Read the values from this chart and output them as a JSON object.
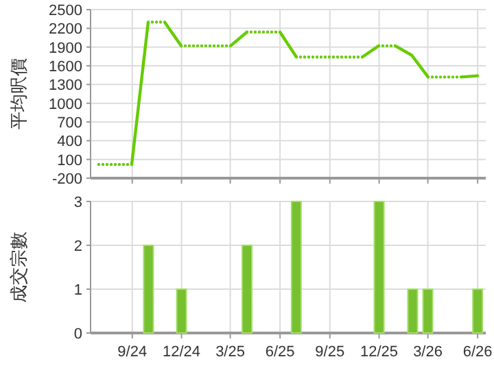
{
  "chart_data": [
    {
      "type": "line",
      "ylabel": "平均呎價",
      "categories": [
        null,
        null,
        null,
        null,
        null,
        null,
        null,
        null,
        null,
        null,
        null,
        null,
        null,
        null,
        null,
        null,
        null,
        null,
        null,
        null,
        null,
        null,
        null,
        null
      ],
      "series": [
        {
          "color": "#66cc00",
          "line_style": "dotted",
          "values": [
            20,
            20,
            20,
            2300,
            2300,
            1920,
            1920,
            1920,
            1920,
            2140,
            2140,
            2140,
            1740,
            1740,
            1740,
            1740,
            1740,
            1920,
            1920,
            1770,
            1420,
            1420,
            1420,
            1440
          ]
        }
      ],
      "ylim": [
        -200,
        2500
      ],
      "yticks": [
        -200,
        100,
        400,
        700,
        1000,
        1300,
        1600,
        1900,
        2200,
        2500
      ],
      "grid": true
    },
    {
      "type": "bar",
      "ylabel": "成交宗數",
      "x": [
        "2024-10",
        "2024-12",
        "2025-04",
        "2025-07",
        "2025-12",
        "2026-02",
        "2026-03",
        "2026-06"
      ],
      "series": [
        {
          "color": "#77c030",
          "values": [
            2,
            1,
            2,
            3,
            3,
            1,
            1,
            1
          ]
        }
      ],
      "xlim": [
        "2024-06-16",
        "2026-06-16"
      ],
      "xticks": [
        {
          "value": "2024-09",
          "label": "9/24"
        },
        {
          "value": "2024-12",
          "label": "12/24"
        },
        {
          "value": "2025-03",
          "label": "3/25"
        },
        {
          "value": "2025-06",
          "label": "6/25"
        },
        {
          "value": "2025-09",
          "label": "9/25"
        },
        {
          "value": "2025-12",
          "label": "12/25"
        },
        {
          "value": "2026-03",
          "label": "3/26"
        },
        {
          "value": "2026-06",
          "label": "6/26"
        }
      ],
      "ylim": [
        0,
        3
      ],
      "yticks": [
        0,
        1,
        2,
        3
      ],
      "grid": true
    }
  ]
}
